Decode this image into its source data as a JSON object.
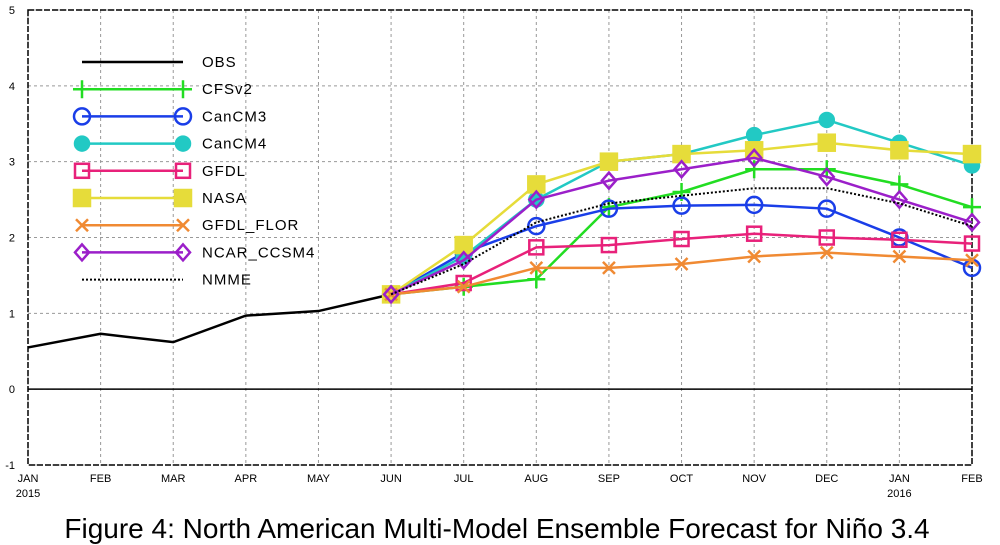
{
  "chart_data": {
    "type": "line",
    "caption": "Figure 4: North American Multi-Model Ensemble Forecast for Niño 3.4",
    "categories": [
      "JAN",
      "FEB",
      "MAR",
      "APR",
      "MAY",
      "JUN",
      "JUL",
      "AUG",
      "SEP",
      "OCT",
      "NOV",
      "DEC",
      "JAN",
      "FEB"
    ],
    "years": [
      "2015",
      null,
      null,
      null,
      null,
      null,
      null,
      null,
      null,
      null,
      null,
      null,
      "2016",
      null
    ],
    "ylim": [
      -1,
      5
    ],
    "yticks": [
      -1,
      0,
      1,
      2,
      3,
      4,
      5
    ],
    "grid": true,
    "reference_line": 0,
    "legend": "upper left",
    "series": [
      {
        "name": "OBS",
        "color": "#000000",
        "marker": "none",
        "dash": "solid",
        "values": [
          0.55,
          0.73,
          0.62,
          0.97,
          1.03,
          1.25,
          null,
          null,
          null,
          null,
          null,
          null,
          null,
          null
        ]
      },
      {
        "name": "CFSv2",
        "color": "#22dd22",
        "marker": "plus",
        "dash": "solid",
        "values": [
          null,
          null,
          null,
          null,
          null,
          1.25,
          1.35,
          1.45,
          2.4,
          2.6,
          2.9,
          2.9,
          2.7,
          2.4
        ]
      },
      {
        "name": "CanCM3",
        "color": "#1a3ee8",
        "marker": "circle",
        "dash": "solid",
        "values": [
          null,
          null,
          null,
          null,
          null,
          1.25,
          1.8,
          2.15,
          2.38,
          2.42,
          2.43,
          2.38,
          2.0,
          1.6
        ]
      },
      {
        "name": "CanCM4",
        "color": "#22c9c4",
        "marker": "dot",
        "dash": "solid",
        "values": [
          null,
          null,
          null,
          null,
          null,
          1.25,
          1.75,
          2.5,
          3.0,
          3.1,
          3.35,
          3.55,
          3.25,
          2.95
        ]
      },
      {
        "name": "GFDL",
        "color": "#e8217a",
        "marker": "square",
        "dash": "solid",
        "values": [
          null,
          null,
          null,
          null,
          null,
          1.25,
          1.4,
          1.87,
          1.9,
          1.98,
          2.05,
          2.0,
          1.97,
          1.92
        ]
      },
      {
        "name": "NASA",
        "color": "#e6dc3a",
        "marker": "filled-square",
        "dash": "solid",
        "values": [
          null,
          null,
          null,
          null,
          null,
          1.25,
          1.9,
          2.7,
          3.0,
          3.1,
          3.15,
          3.25,
          3.15,
          3.1
        ]
      },
      {
        "name": "GFDL_FLOR",
        "color": "#f08a33",
        "marker": "cross",
        "dash": "solid",
        "values": [
          null,
          null,
          null,
          null,
          null,
          1.25,
          1.35,
          1.6,
          1.6,
          1.65,
          1.75,
          1.8,
          1.75,
          1.7
        ]
      },
      {
        "name": "NCAR_CCSM4",
        "color": "#9b1fc9",
        "marker": "diamond",
        "dash": "solid",
        "values": [
          null,
          null,
          null,
          null,
          null,
          1.25,
          1.7,
          2.5,
          2.75,
          2.9,
          3.05,
          2.8,
          2.5,
          2.2
        ]
      },
      {
        "name": "NMME",
        "color": "#000000",
        "marker": "none",
        "dash": "dotted",
        "values": [
          null,
          null,
          null,
          null,
          null,
          1.25,
          1.65,
          2.2,
          2.45,
          2.55,
          2.65,
          2.65,
          2.45,
          2.15
        ]
      }
    ]
  }
}
